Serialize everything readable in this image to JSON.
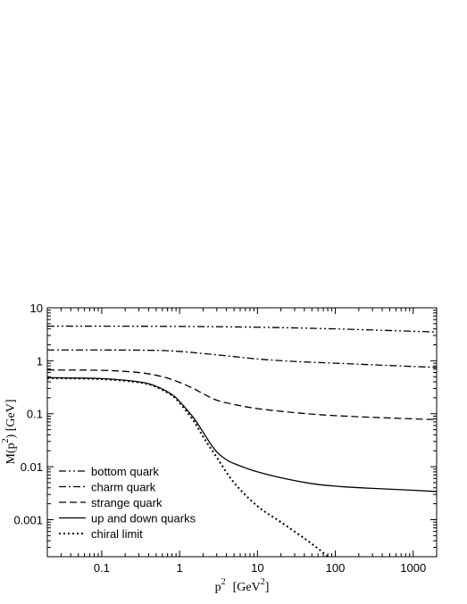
{
  "chart_data": {
    "type": "line",
    "x_scale": "log",
    "y_scale": "log",
    "xlim": [
      0.02,
      2000
    ],
    "ylim": [
      0.0002,
      10
    ],
    "x_ticks": [
      {
        "value": 0.1,
        "label": "0.1"
      },
      {
        "value": 1,
        "label": "1"
      },
      {
        "value": 10,
        "label": "10"
      },
      {
        "value": 100,
        "label": "100"
      },
      {
        "value": 1000,
        "label": "1000"
      }
    ],
    "y_ticks": [
      {
        "value": 0.001,
        "label": "0.001"
      },
      {
        "value": 0.01,
        "label": "0.01"
      },
      {
        "value": 0.1,
        "label": "0.1"
      },
      {
        "value": 1,
        "label": "1"
      },
      {
        "value": 10,
        "label": "10"
      }
    ],
    "xlabel": {
      "base": "p",
      "sup": "2",
      "unit_open": "[GeV",
      "unit_sup": "2",
      "unit_close": "]"
    },
    "ylabel": {
      "base": "M(p",
      "sup": "2",
      "rest": ") [GeV]"
    },
    "legend_position": "bottom-left",
    "series": [
      {
        "name": "bottom quark",
        "style": "dash-dot-dot",
        "x": [
          0.02,
          0.1,
          1,
          10,
          100,
          1000,
          2000
        ],
        "y": [
          4.5,
          4.5,
          4.45,
          4.3,
          4.0,
          3.6,
          3.5
        ]
      },
      {
        "name": "charm quark",
        "style": "dash-dot",
        "x": [
          0.02,
          0.1,
          0.5,
          1,
          2,
          5,
          10,
          30,
          100,
          300,
          1000,
          2000
        ],
        "y": [
          1.6,
          1.6,
          1.57,
          1.5,
          1.37,
          1.2,
          1.08,
          0.97,
          0.9,
          0.84,
          0.78,
          0.75
        ]
      },
      {
        "name": "strange quark",
        "style": "dashed",
        "x": [
          0.02,
          0.1,
          0.3,
          0.6,
          1,
          1.5,
          2,
          3,
          5,
          10,
          30,
          100,
          1000,
          2000
        ],
        "y": [
          0.67,
          0.66,
          0.6,
          0.5,
          0.39,
          0.3,
          0.24,
          0.18,
          0.15,
          0.125,
          0.105,
          0.092,
          0.08,
          0.078
        ]
      },
      {
        "name": "up and down quarks",
        "style": "solid",
        "x": [
          0.02,
          0.1,
          0.3,
          0.5,
          0.8,
          1,
          1.5,
          2,
          2.5,
          3,
          4,
          5,
          7,
          10,
          20,
          50,
          100,
          300,
          1000,
          2000
        ],
        "y": [
          0.48,
          0.46,
          0.4,
          0.33,
          0.23,
          0.17,
          0.085,
          0.045,
          0.027,
          0.019,
          0.0135,
          0.0115,
          0.0095,
          0.008,
          0.0062,
          0.0048,
          0.0043,
          0.0039,
          0.0036,
          0.0034
        ]
      },
      {
        "name": "chiral limit",
        "style": "dotted",
        "x": [
          0.02,
          0.1,
          0.3,
          0.5,
          0.8,
          1,
          1.5,
          2,
          3,
          5,
          10,
          20,
          50,
          80
        ],
        "y": [
          0.47,
          0.45,
          0.39,
          0.32,
          0.22,
          0.16,
          0.075,
          0.037,
          0.015,
          0.005,
          0.0018,
          0.0009,
          0.00035,
          0.0002
        ]
      }
    ]
  }
}
